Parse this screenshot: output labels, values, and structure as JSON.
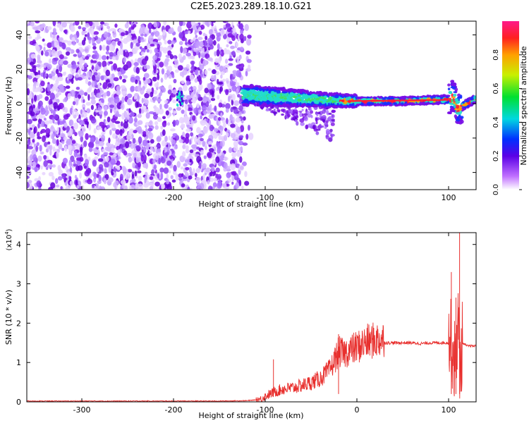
{
  "title": "C2E5.2023.289.18.10.G21",
  "colors": {
    "snr_line": "#e8302e",
    "spectrum_low": "#7a00e0",
    "spectrum_mid": "#22dccc",
    "spectrum_high": "#ff1a3a"
  },
  "chart_data": [
    {
      "type": "heatmap",
      "name": "frequency-spectrogram",
      "xlabel": "Height of straight line (km)",
      "ylabel": "Frequency (Hz)",
      "xlim": [
        -360,
        130
      ],
      "ylim": [
        -50,
        48
      ],
      "xticks": [
        -300,
        -200,
        -100,
        0,
        100
      ],
      "yticks": [
        -40,
        -20,
        0,
        20,
        40
      ],
      "colorbar": {
        "label": "Normalized spectral amplitude",
        "range": [
          0,
          1
        ],
        "ticks": [
          0.0,
          0.2,
          0.4,
          0.6,
          0.8
        ]
      },
      "features": {
        "noise_region_x": [
          -360,
          -125
        ],
        "trace_x": [
          -125,
          130
        ],
        "trace_center_hz": [
          [
            -125,
            5
          ],
          [
            -90,
            4
          ],
          [
            -60,
            3
          ],
          [
            -30,
            2
          ],
          [
            0,
            1.5
          ],
          [
            50,
            1.5
          ],
          [
            100,
            2.5
          ],
          [
            105,
            5
          ],
          [
            110,
            -3
          ],
          [
            130,
            3
          ]
        ]
      }
    },
    {
      "type": "line",
      "name": "snr",
      "xlabel": "Height of straight line (km)",
      "ylabel": "SNR (10 * v/v)",
      "y_scale_label": "(x10",
      "y_scale_exp": "4",
      "y_scale_close": ")",
      "xlim": [
        -360,
        130
      ],
      "ylim": [
        0,
        4.3
      ],
      "xticks": [
        -300,
        -200,
        -100,
        0,
        100
      ],
      "yticks": [
        0,
        1,
        2,
        3,
        4
      ],
      "series": [
        {
          "x": [
            -360,
            -250,
            -200,
            -150,
            -120,
            -105,
            -100,
            -90,
            -80,
            -70,
            -60,
            -50,
            -40,
            -30,
            -25,
            -20,
            -15,
            -10,
            -5,
            0,
            10,
            20,
            30,
            40,
            50,
            60,
            70,
            80,
            90,
            100,
            103,
            105,
            108,
            110,
            112,
            115,
            120,
            130
          ],
          "y": [
            0.01,
            0.01,
            0.01,
            0.01,
            0.02,
            0.05,
            0.12,
            0.22,
            0.3,
            0.32,
            0.38,
            0.45,
            0.55,
            0.75,
            0.95,
            1.2,
            1.15,
            1.2,
            1.25,
            1.3,
            1.42,
            1.47,
            1.5,
            1.5,
            1.5,
            1.5,
            1.48,
            1.5,
            1.5,
            1.5,
            1.55,
            1.2,
            0.9,
            2.3,
            0.8,
            1.5,
            1.42,
            1.42
          ]
        }
      ],
      "spikes": [
        {
          "x": -91,
          "y": 1.08
        },
        {
          "x": -20,
          "y": 1.72
        },
        {
          "x": 103,
          "y": 3.3
        },
        {
          "x": 108,
          "y": 2.65
        },
        {
          "x": 112,
          "y": 4.3
        }
      ]
    }
  ]
}
